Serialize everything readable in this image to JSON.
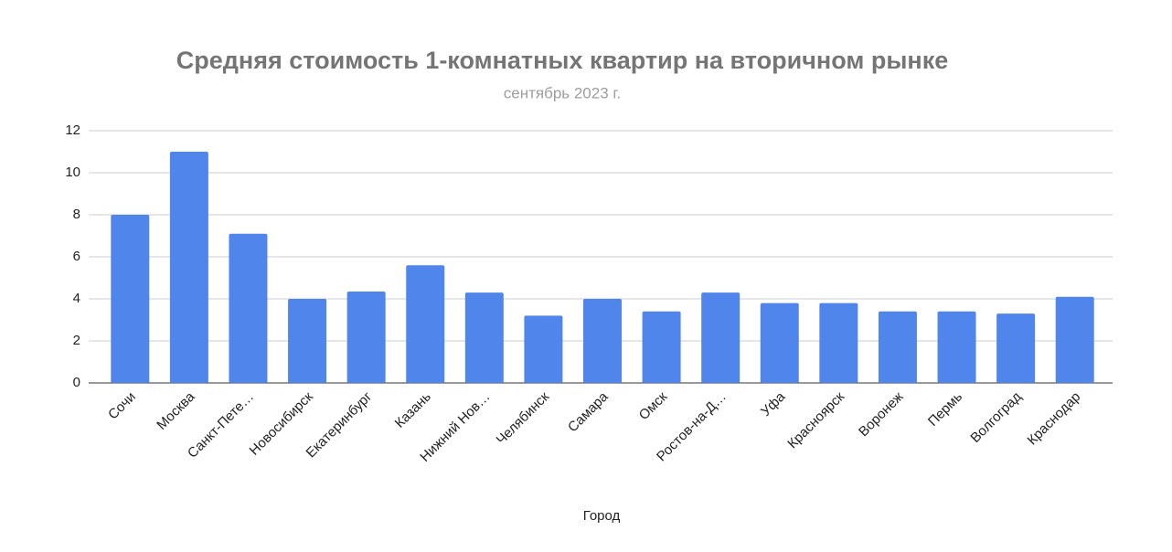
{
  "chart_data": {
    "type": "bar",
    "title": "Средняя стоимость 1-комнатных квартир на вторичном рынке",
    "subtitle": "сентябрь 2023 г.",
    "x_label": "Город",
    "categories": [
      "Сочи",
      "Москва",
      "Санкт-Пете…",
      "Новосибирск",
      "Екатеринбург",
      "Казань",
      "Нижний Нов…",
      "Челябинск",
      "Самара",
      "Омск",
      "Ростов-на-Д…",
      "Уфа",
      "Красноярск",
      "Воронеж",
      "Пермь",
      "Волгоград",
      "Краснодар"
    ],
    "values": [
      8.0,
      11.0,
      7.1,
      4.0,
      4.35,
      5.6,
      4.3,
      3.2,
      4.0,
      3.4,
      4.3,
      3.8,
      3.8,
      3.4,
      3.4,
      3.3,
      4.1
    ],
    "color": "#5086ec",
    "ylim": [
      0,
      12
    ],
    "yticks": [
      0,
      2,
      4,
      6,
      8,
      10,
      12
    ],
    "grid": true
  }
}
